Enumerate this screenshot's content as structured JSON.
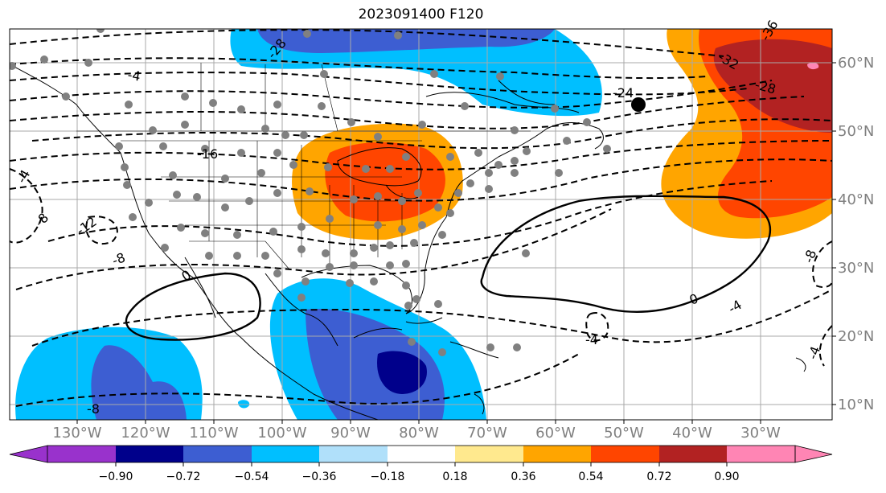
{
  "title": "2023091400 F120",
  "lon_labels": [
    "130°W",
    "120°W",
    "110°W",
    "100°W",
    "90°W",
    "80°W",
    "70°W",
    "60°W",
    "50°W",
    "40°W",
    "30°W"
  ],
  "lat_labels": [
    "60°N",
    "50°N",
    "40°N",
    "30°N",
    "20°N",
    "10°N"
  ],
  "contour_labels": [
    "-36",
    "-32",
    "-28",
    "-28",
    "-24",
    "-16",
    "-12",
    "-8",
    "-8",
    "-8",
    "-8",
    "-4",
    "-4",
    "-4",
    "-4",
    "-4",
    "0",
    "0"
  ],
  "colorbar": {
    "tick_labels": [
      "−0.90",
      "−0.72",
      "−0.54",
      "−0.36",
      "−0.18",
      "0.18",
      "0.36",
      "0.54",
      "0.72",
      "0.90"
    ],
    "colors": [
      "#9932cc",
      "#00008b",
      "#3d5ed2",
      "#00bfff",
      "#b0e0fa",
      "#ffffff",
      "#ffe98e",
      "#ffa500",
      "#ff4500",
      "#b22222",
      "#ff85b4"
    ]
  },
  "marker": {
    "type": "filled circle",
    "color": "#000000"
  }
}
